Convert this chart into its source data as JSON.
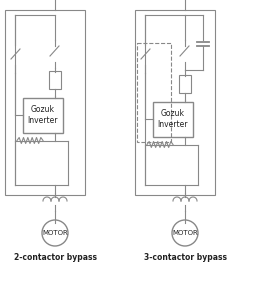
{
  "line_color": "#888888",
  "text_color": "#222222",
  "title1": "2-contactor bypass",
  "title2": "3-contactor bypass",
  "inverter_label": "Gozuk\nInverter",
  "motor_label": "MOTOR",
  "fig_width": 2.6,
  "fig_height": 2.89,
  "dpi": 100
}
